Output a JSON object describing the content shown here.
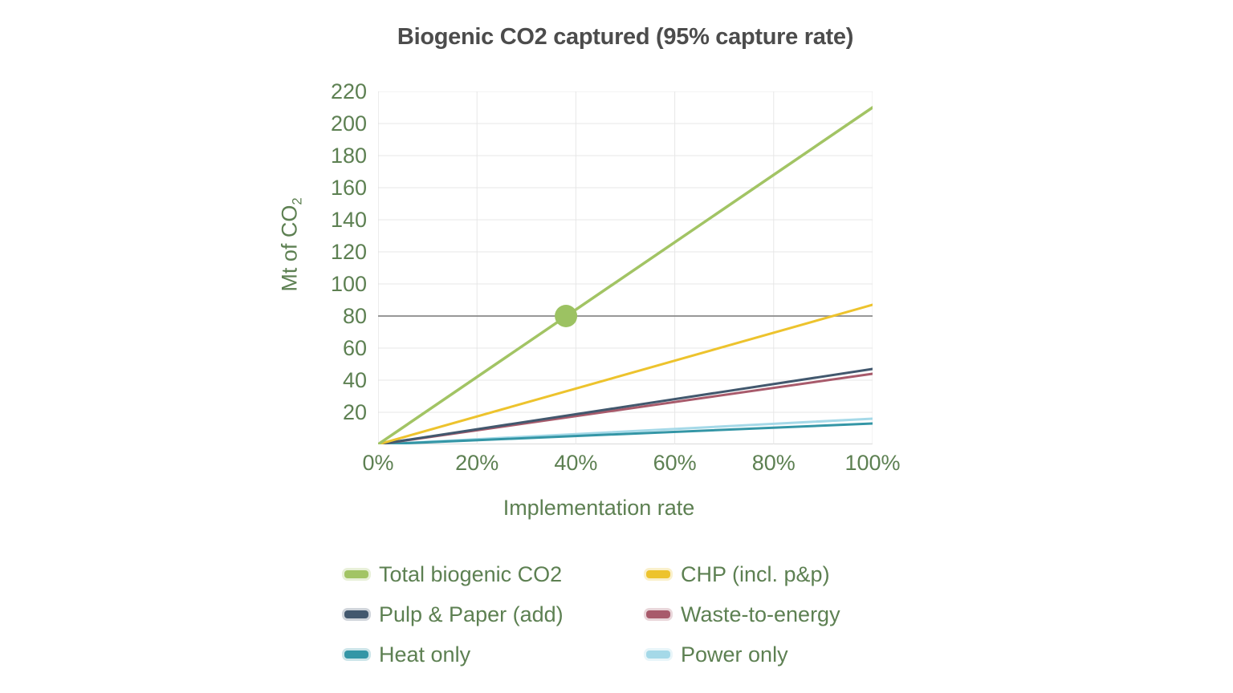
{
  "page": {
    "background": "#ffffff",
    "text_green": "#5d8052",
    "title_color": "#4c4c4c"
  },
  "chart_data": {
    "type": "line",
    "title": "Biogenic CO2 captured (95% capture rate)",
    "xlabel": "Implementation rate",
    "ylabel_base": "Mt of CO",
    "ylabel_sub": "2",
    "xlim": [
      0,
      100
    ],
    "ylim": [
      0,
      220
    ],
    "x_ticks": [
      0,
      20,
      40,
      60,
      80,
      100
    ],
    "x_tick_suffix": "%",
    "y_ticks": [
      20,
      40,
      60,
      80,
      100,
      120,
      140,
      160,
      180,
      200,
      220
    ],
    "grid": true,
    "legend_position": "bottom",
    "grid_color": "#e7e7e7",
    "axis_color": "#d9d9d9",
    "reference_line": {
      "y": 80,
      "color": "#8a8a8a"
    },
    "highlight_point": {
      "series": "Total biogenic CO2",
      "x": 38,
      "y": 80,
      "color": "#9cc262",
      "radius": 14
    },
    "series": [
      {
        "name": "Total biogenic CO2",
        "color": "#a2c464",
        "width": 3.5,
        "x": [
          0,
          100
        ],
        "values": [
          0,
          210
        ]
      },
      {
        "name": "CHP (incl. p&p)",
        "color": "#edc32d",
        "width": 3,
        "x": [
          0,
          100
        ],
        "values": [
          0,
          87
        ]
      },
      {
        "name": "Pulp & Paper (add)",
        "color": "#42586e",
        "width": 3,
        "x": [
          0,
          100
        ],
        "values": [
          0,
          47
        ]
      },
      {
        "name": "Waste-to-energy",
        "color": "#a85a6b",
        "width": 3,
        "x": [
          0,
          100
        ],
        "values": [
          0,
          44
        ]
      },
      {
        "name": "Heat only",
        "color": "#3496a6",
        "width": 3,
        "x": [
          0,
          100
        ],
        "values": [
          0,
          13
        ]
      },
      {
        "name": "Power only",
        "color": "#a5d9e8",
        "width": 3,
        "x": [
          0,
          100
        ],
        "values": [
          0,
          16
        ]
      }
    ]
  }
}
